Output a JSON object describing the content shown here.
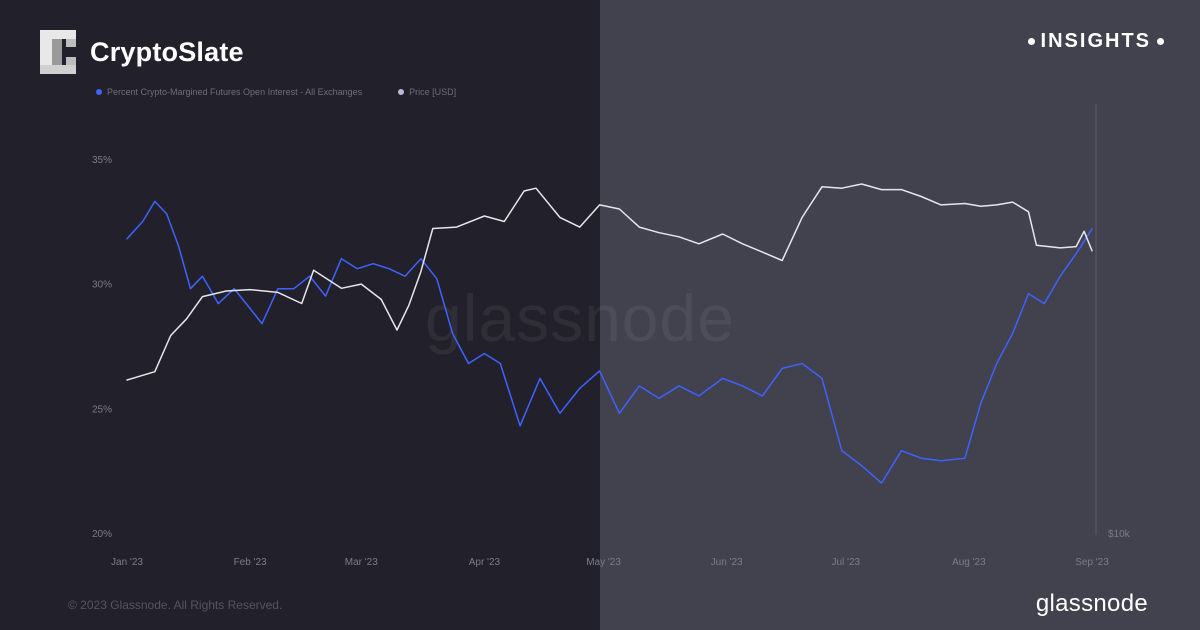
{
  "brand": {
    "name": "CryptoSlate",
    "logo_icon": "cryptoslate-logo-icon"
  },
  "badge": {
    "label": "INSIGHTS"
  },
  "watermark": "glassnode",
  "footer": {
    "copyright": "© 2023 Glassnode. All Rights Reserved.",
    "logo_text": "glassnode"
  },
  "colors": {
    "background_left": "#22212b",
    "background_right": "#42414e",
    "oi_series": "#3d63ff",
    "price_series": "#e6e6ee"
  },
  "chart_data": {
    "type": "line",
    "legend_position": "top-left",
    "grid": false,
    "legend": [
      {
        "name": "Percent Crypto-Margined Futures Open Interest - All Exchanges",
        "color": "#3d63ff"
      },
      {
        "name": "Price [USD]",
        "color": "#b8bcd8"
      }
    ],
    "x_ticks": [
      "Jan '23",
      "Feb '23",
      "Mar '23",
      "Apr '23",
      "May '23",
      "Jun '23",
      "Jul '23",
      "Aug '23",
      "Sep '23"
    ],
    "y_ticks_left": [
      "35%",
      "30%",
      "25%",
      "20%"
    ],
    "y_ticks_right": [
      "$10k"
    ],
    "ylim_left": [
      20,
      35
    ],
    "series": [
      {
        "name": "Percent Crypto-Margined Futures Open Interest - All Exchanges",
        "axis": "left",
        "x": [
          "2023-01-01",
          "2023-01-05",
          "2023-01-08",
          "2023-01-11",
          "2023-01-14",
          "2023-01-17",
          "2023-01-20",
          "2023-01-24",
          "2023-01-28",
          "2023-02-01",
          "2023-02-04",
          "2023-02-08",
          "2023-02-12",
          "2023-02-16",
          "2023-02-20",
          "2023-02-24",
          "2023-02-28",
          "2023-03-04",
          "2023-03-08",
          "2023-03-12",
          "2023-03-16",
          "2023-03-20",
          "2023-03-24",
          "2023-03-28",
          "2023-04-01",
          "2023-04-05",
          "2023-04-10",
          "2023-04-15",
          "2023-04-20",
          "2023-04-25",
          "2023-04-30",
          "2023-05-05",
          "2023-05-10",
          "2023-05-15",
          "2023-05-20",
          "2023-05-25",
          "2023-05-31",
          "2023-06-05",
          "2023-06-10",
          "2023-06-15",
          "2023-06-20",
          "2023-06-25",
          "2023-06-30",
          "2023-07-05",
          "2023-07-10",
          "2023-07-15",
          "2023-07-20",
          "2023-07-25",
          "2023-07-31",
          "2023-08-04",
          "2023-08-08",
          "2023-08-12",
          "2023-08-16",
          "2023-08-20",
          "2023-08-24",
          "2023-08-28",
          "2023-09-01"
        ],
        "values": [
          31.8,
          32.5,
          33.3,
          32.8,
          31.5,
          29.8,
          30.3,
          29.2,
          29.8,
          29.0,
          28.4,
          29.8,
          29.8,
          30.3,
          29.5,
          31.0,
          30.6,
          30.8,
          30.6,
          30.3,
          31.0,
          30.2,
          28.0,
          26.8,
          27.2,
          26.8,
          24.3,
          26.2,
          24.8,
          25.8,
          26.5,
          24.8,
          25.9,
          25.4,
          25.9,
          25.5,
          26.2,
          25.9,
          25.5,
          26.6,
          26.8,
          26.2,
          23.3,
          22.7,
          22.0,
          23.3,
          23.0,
          22.9,
          23.0,
          25.2,
          26.8,
          28.0,
          29.6,
          29.2,
          30.3,
          31.2,
          32.2
        ]
      },
      {
        "name": "Price [USD]",
        "axis": "right",
        "x": [
          "2023-01-01",
          "2023-01-08",
          "2023-01-12",
          "2023-01-16",
          "2023-01-20",
          "2023-01-26",
          "2023-02-01",
          "2023-02-08",
          "2023-02-14",
          "2023-02-17",
          "2023-02-24",
          "2023-03-01",
          "2023-03-06",
          "2023-03-10",
          "2023-03-13",
          "2023-03-16",
          "2023-03-19",
          "2023-03-25",
          "2023-04-01",
          "2023-04-06",
          "2023-04-11",
          "2023-04-14",
          "2023-04-20",
          "2023-04-25",
          "2023-04-30",
          "2023-05-05",
          "2023-05-10",
          "2023-05-15",
          "2023-05-20",
          "2023-05-25",
          "2023-05-31",
          "2023-06-05",
          "2023-06-10",
          "2023-06-15",
          "2023-06-20",
          "2023-06-25",
          "2023-06-30",
          "2023-07-05",
          "2023-07-10",
          "2023-07-15",
          "2023-07-20",
          "2023-07-25",
          "2023-07-31",
          "2023-08-04",
          "2023-08-08",
          "2023-08-12",
          "2023-08-16",
          "2023-08-18",
          "2023-08-24",
          "2023-08-28",
          "2023-08-30",
          "2023-09-01"
        ],
        "values": [
          16600,
          17200,
          19800,
          21000,
          22600,
          23000,
          23100,
          22900,
          22100,
          24500,
          23200,
          23500,
          22400,
          20200,
          22000,
          24400,
          27500,
          27600,
          28400,
          28000,
          30200,
          30400,
          28300,
          27600,
          29200,
          28900,
          27600,
          27200,
          26900,
          26400,
          27100,
          26400,
          25800,
          25200,
          28300,
          30500,
          30400,
          30700,
          30300,
          30300,
          29800,
          29200,
          29300,
          29100,
          29200,
          29400,
          28700,
          26300,
          26100,
          26200,
          27300,
          25900
        ]
      }
    ]
  }
}
